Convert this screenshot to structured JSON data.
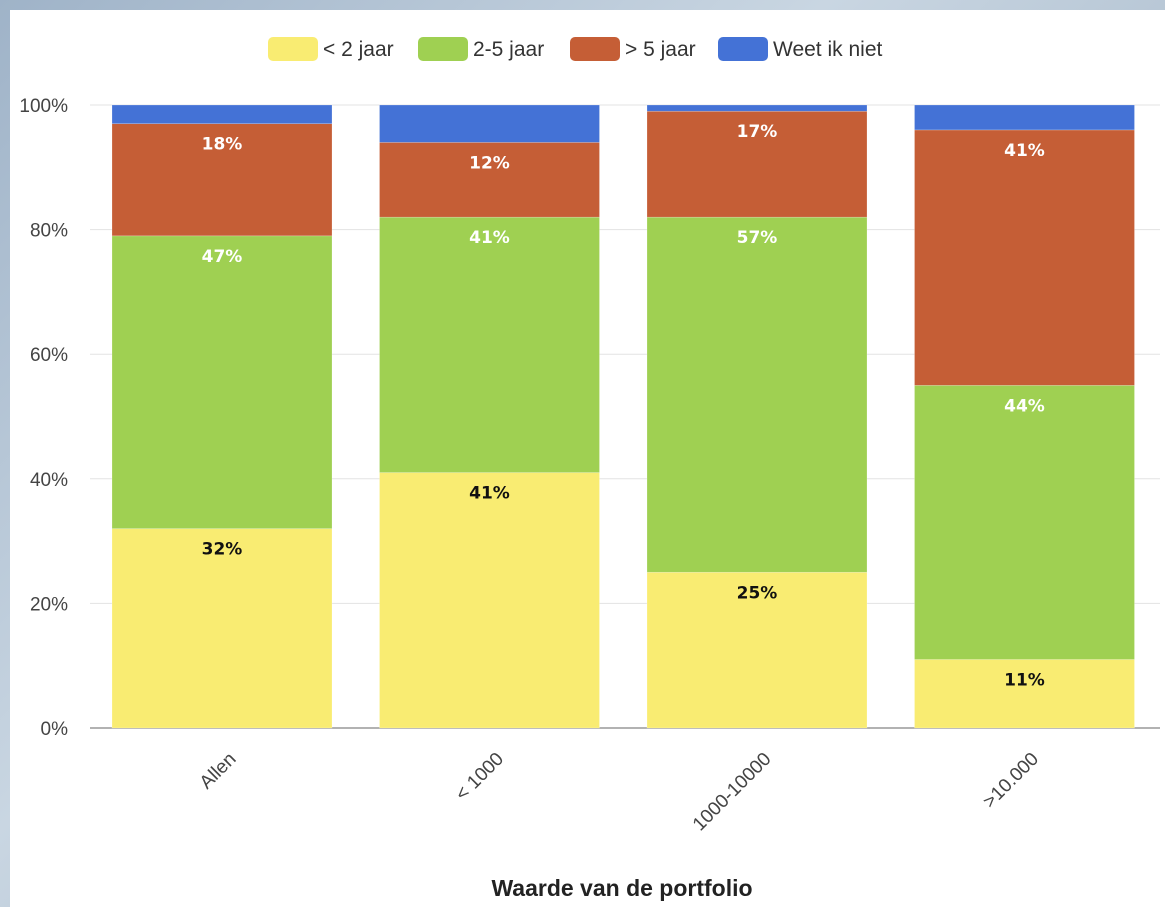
{
  "chart_data": {
    "type": "bar",
    "stacked": true,
    "xlabel": "Waarde van de portfolio",
    "ylabel": "",
    "ylim": [
      0,
      100
    ],
    "yticks": [
      "0%",
      "20%",
      "40%",
      "60%",
      "80%",
      "100%"
    ],
    "grid": true,
    "legend_position": "top",
    "categories": [
      "Allen",
      "< 1000",
      "1000-10000",
      ">10.000"
    ],
    "series": [
      {
        "name": "< 2 jaar",
        "color": "#f9ec72",
        "label_color": "#111111",
        "values": [
          32,
          41,
          25,
          11
        ],
        "labels": [
          "32%",
          "41%",
          "25%",
          "11%"
        ]
      },
      {
        "name": "2-5 jaar",
        "color": "#9fd052",
        "label_color": "#ffffff",
        "values": [
          47,
          41,
          57,
          44
        ],
        "labels": [
          "47%",
          "41%",
          "57%",
          "44%"
        ]
      },
      {
        "name": "> 5 jaar",
        "color": "#c55e36",
        "label_color": "#ffffff",
        "values": [
          18,
          12,
          17,
          41
        ],
        "labels": [
          "18%",
          "12%",
          "17%",
          "41%"
        ]
      },
      {
        "name": "Weet ik niet",
        "color": "#4472d6",
        "label_color": "#ffffff",
        "values": [
          3,
          6,
          1,
          4
        ],
        "labels": [
          "",
          "",
          "",
          ""
        ]
      }
    ]
  }
}
